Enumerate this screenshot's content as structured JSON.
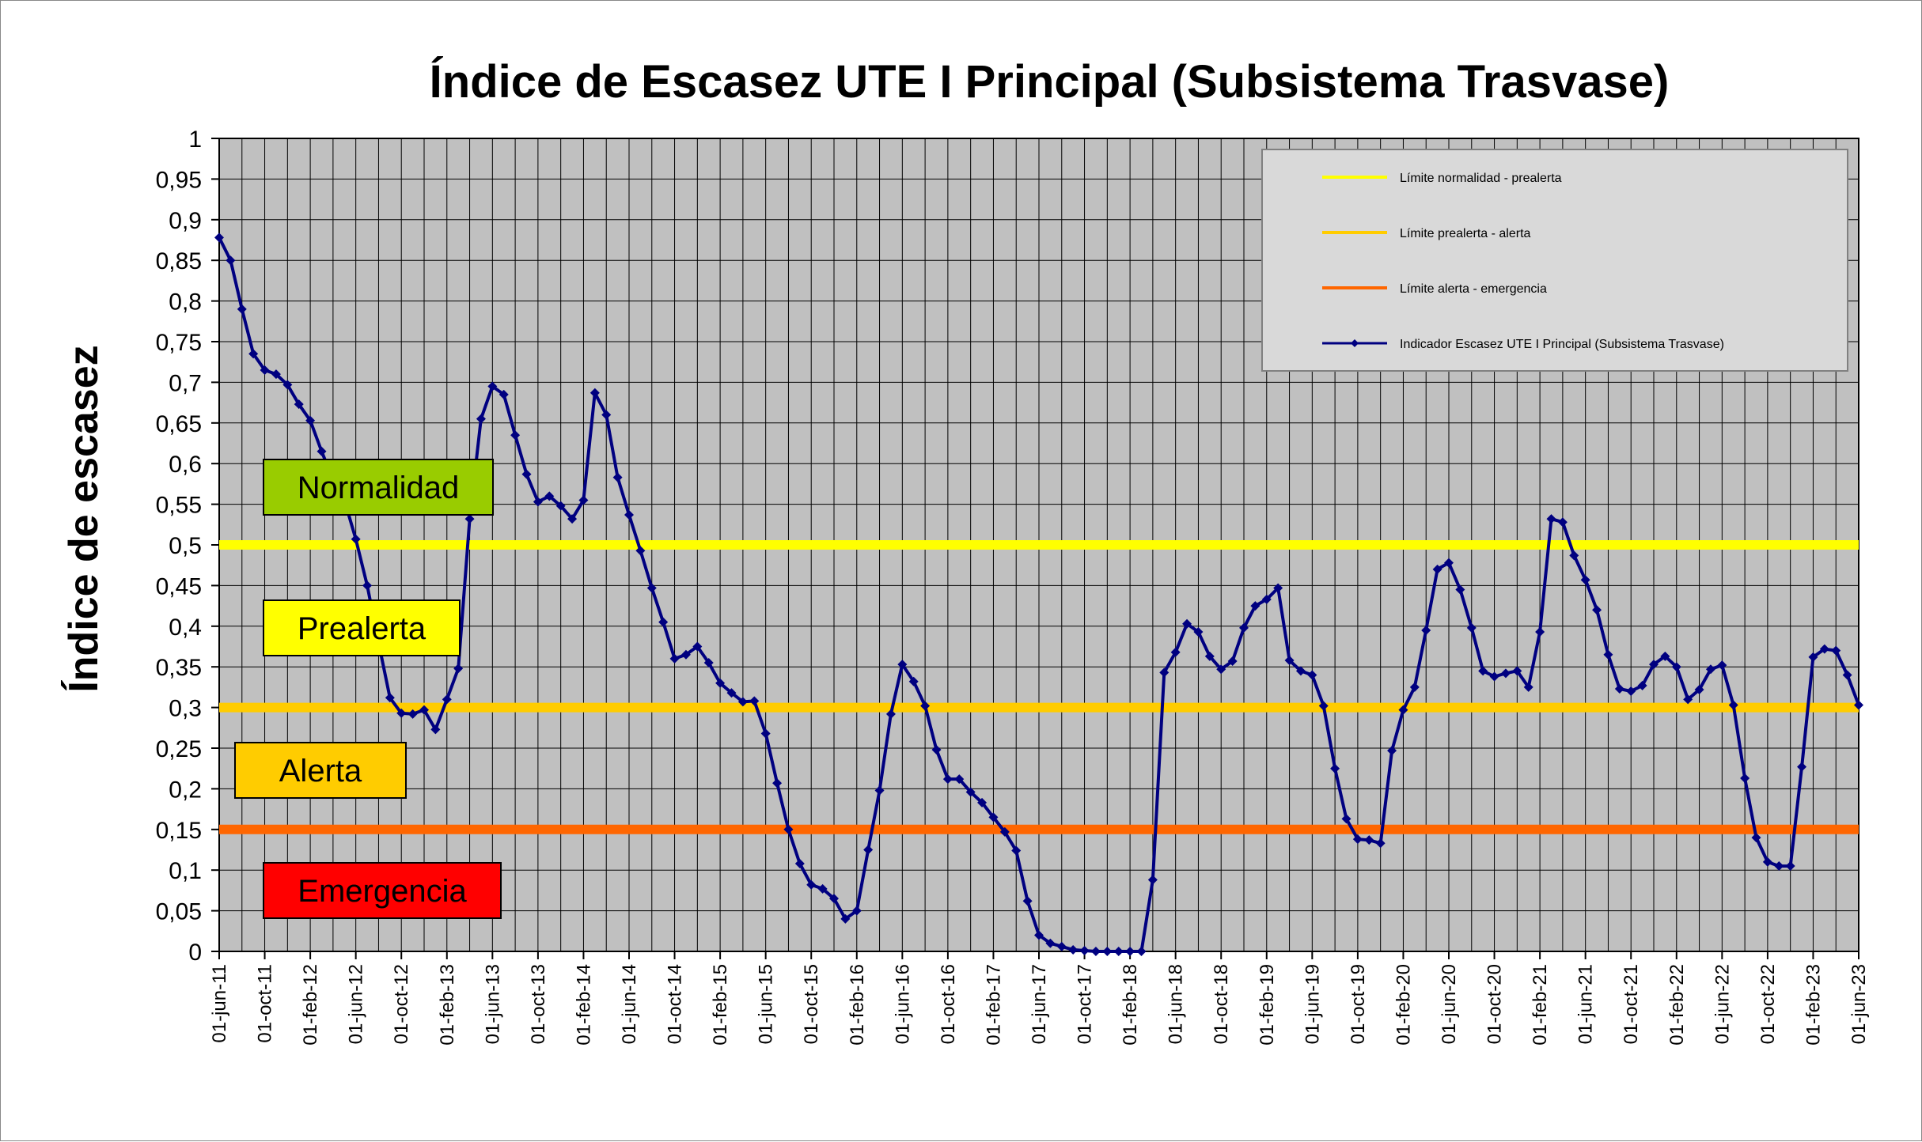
{
  "colors": {
    "plot_background": "#c0c0c0",
    "grid": "#000000",
    "series": "#000080",
    "limit_normal_prealert": "#ffff00",
    "limit_prealert_alert": "#ffcc00",
    "limit_alert_emergency": "#ff6600",
    "legend_background": "#d9d9d9"
  },
  "zones": [
    {
      "label": "Normalidad",
      "color": "#99cc00"
    },
    {
      "label": "Prealerta",
      "color": "#ffff00"
    },
    {
      "label": "Alerta",
      "color": "#ffcc00"
    },
    {
      "label": "Emergencia",
      "color": "#ff0000"
    }
  ],
  "chart_data": {
    "type": "line",
    "title": "Índice de Escasez UTE I Principal (Subsistema Trasvase)",
    "xlabel": "",
    "ylabel": "Índice de escasez",
    "ylim": [
      0,
      1
    ],
    "yticks": [
      "0",
      "0,05",
      "0,1",
      "0,15",
      "0,2",
      "0,25",
      "0,3",
      "0,35",
      "0,4",
      "0,45",
      "0,5",
      "0,55",
      "0,6",
      "0,65",
      "0,7",
      "0,75",
      "0,8",
      "0,85",
      "0,9",
      "0,95",
      "1"
    ],
    "x_tick_labels": [
      "01-jun-11",
      "01-oct-11",
      "01-feb-12",
      "01-jun-12",
      "01-oct-12",
      "01-feb-13",
      "01-jun-13",
      "01-oct-13",
      "01-feb-14",
      "01-jun-14",
      "01-oct-14",
      "01-feb-15",
      "01-jun-15",
      "01-oct-15",
      "01-feb-16",
      "01-jun-16",
      "01-oct-16",
      "01-feb-17",
      "01-jun-17",
      "01-oct-17",
      "01-feb-18",
      "01-jun-18",
      "01-oct-18",
      "01-feb-19",
      "01-jun-19",
      "01-oct-19",
      "01-feb-20",
      "01-jun-20",
      "01-oct-20",
      "01-feb-21",
      "01-jun-21",
      "01-oct-21",
      "01-feb-22",
      "01-jun-22",
      "01-oct-22",
      "01-feb-23",
      "01-jun-23"
    ],
    "grid": true,
    "legend_position": "top-right",
    "thresholds": [
      {
        "name": "Límite normalidad - prealerta",
        "value": 0.5
      },
      {
        "name": "Límite prealerta - alerta",
        "value": 0.3
      },
      {
        "name": "Límite alerta - emergencia",
        "value": 0.15
      }
    ],
    "series": [
      {
        "name": "Indicador Escasez UTE I Principal (Subsistema Trasvase)",
        "x_start": "2011-06",
        "x_step": "1 month",
        "values": [
          0.878,
          0.85,
          0.79,
          0.735,
          0.715,
          0.71,
          0.697,
          0.673,
          0.653,
          0.615,
          0.58,
          0.555,
          0.507,
          0.45,
          0.38,
          0.312,
          0.293,
          0.292,
          0.297,
          0.273,
          0.31,
          0.348,
          0.532,
          0.655,
          0.695,
          0.685,
          0.635,
          0.587,
          0.553,
          0.56,
          0.548,
          0.532,
          0.555,
          0.687,
          0.66,
          0.583,
          0.537,
          0.493,
          0.447,
          0.405,
          0.36,
          0.365,
          0.375,
          0.355,
          0.33,
          0.318,
          0.307,
          0.308,
          0.268,
          0.207,
          0.15,
          0.108,
          0.082,
          0.077,
          0.065,
          0.04,
          0.05,
          0.125,
          0.198,
          0.292,
          0.353,
          0.332,
          0.302,
          0.248,
          0.212,
          0.212,
          0.196,
          0.183,
          0.165,
          0.147,
          0.124,
          0.062,
          0.02,
          0.01,
          0.006,
          0.002,
          0.001,
          0.0,
          0.0,
          0.0,
          0.0,
          0.0,
          0.088,
          0.343,
          0.368,
          0.403,
          0.393,
          0.363,
          0.347,
          0.357,
          0.398,
          0.425,
          0.433,
          0.447,
          0.358,
          0.345,
          0.34,
          0.302,
          0.225,
          0.163,
          0.138,
          0.137,
          0.133,
          0.247,
          0.297,
          0.325,
          0.395,
          0.47,
          0.478,
          0.445,
          0.398,
          0.345,
          0.338,
          0.342,
          0.345,
          0.325,
          0.393,
          0.532,
          0.528,
          0.487,
          0.457,
          0.42,
          0.365,
          0.323,
          0.32,
          0.327,
          0.353,
          0.363,
          0.35,
          0.31,
          0.322,
          0.347,
          0.352,
          0.303,
          0.213,
          0.14,
          0.11,
          0.105,
          0.105,
          0.227,
          0.362,
          0.372,
          0.37,
          0.34,
          0.303
        ]
      }
    ]
  }
}
